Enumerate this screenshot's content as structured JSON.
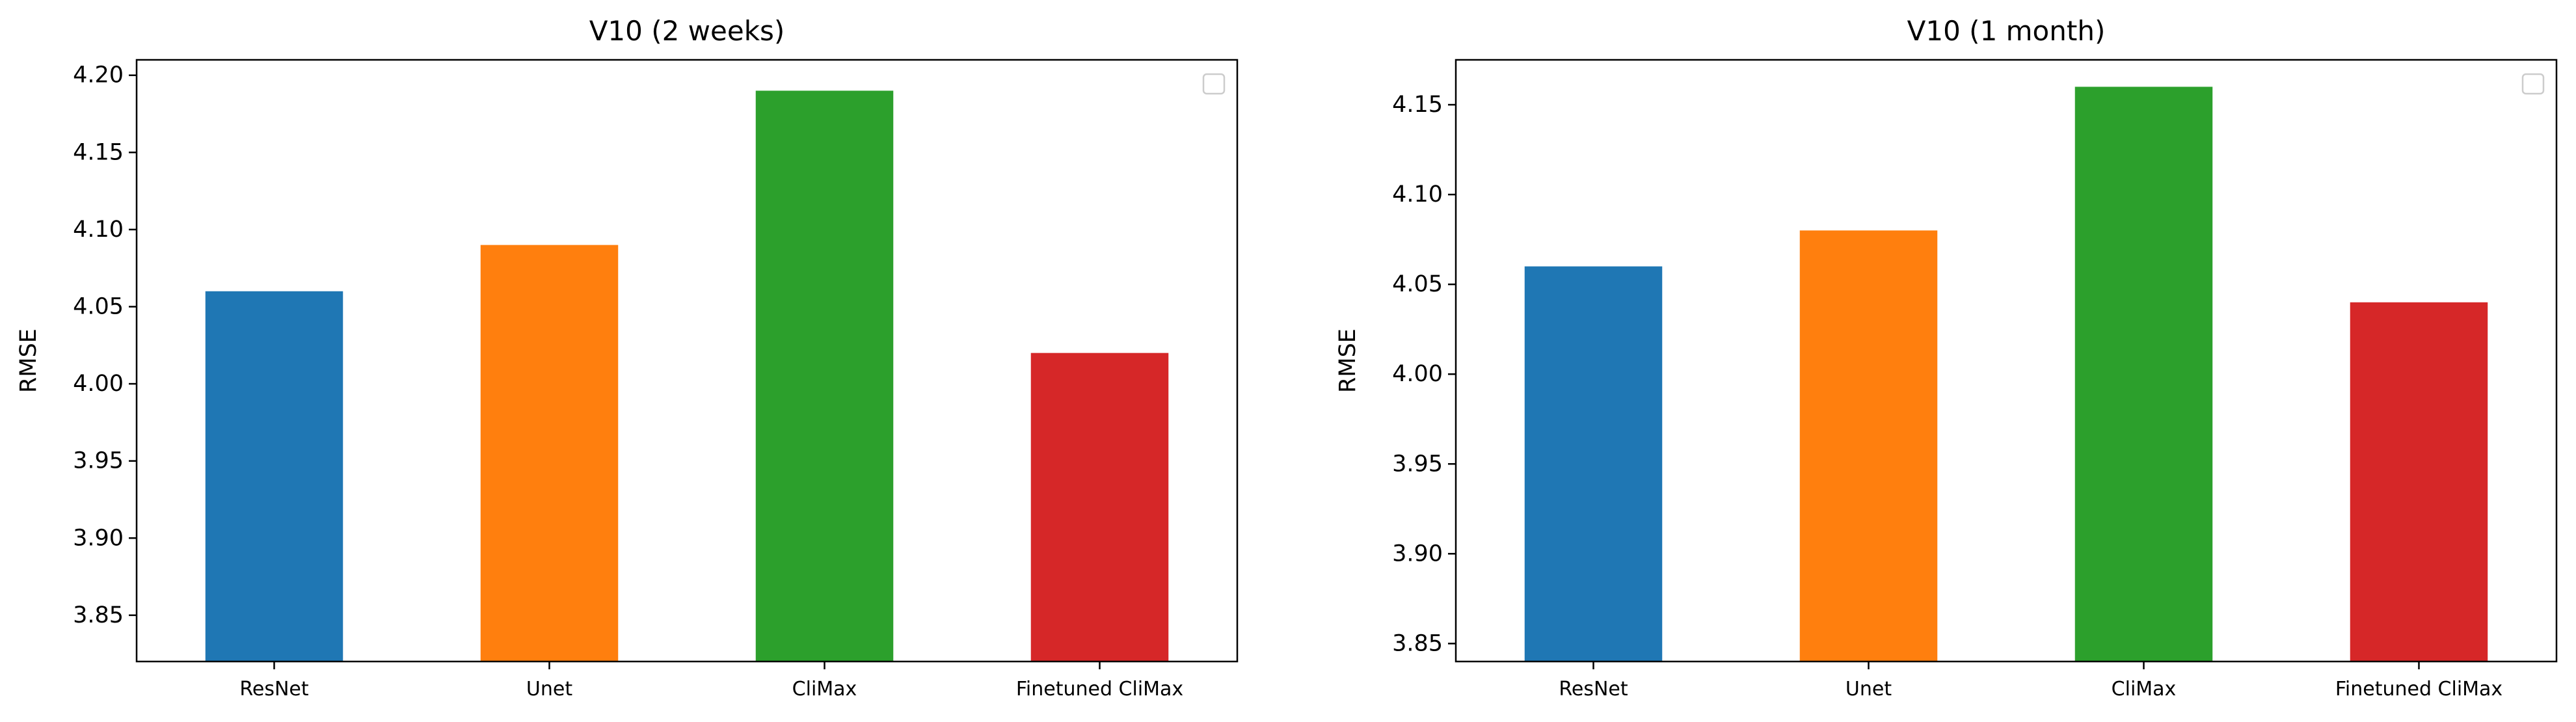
{
  "chart_data": [
    {
      "type": "bar",
      "title": "V10 (2 weeks)",
      "xlabel": "",
      "ylabel": "RMSE",
      "categories": [
        "ResNet",
        "Unet",
        "CliMax",
        "Finetuned CliMax"
      ],
      "values": [
        4.06,
        4.09,
        4.19,
        4.02
      ],
      "colors": [
        "#1f77b4",
        "#ff7f0e",
        "#2ca02c",
        "#d62728"
      ],
      "ylim": [
        3.82,
        4.21
      ],
      "yticks": [
        3.85,
        3.9,
        3.95,
        4.0,
        4.05,
        4.1,
        4.15,
        4.2
      ],
      "ytick_labels": [
        "3.85",
        "3.90",
        "3.95",
        "4.00",
        "4.05",
        "4.10",
        "4.15",
        "4.20"
      ],
      "grid": false,
      "legend": {
        "placement": "top-right",
        "entries": []
      }
    },
    {
      "type": "bar",
      "title": "V10 (1 month)",
      "xlabel": "",
      "ylabel": "RMSE",
      "categories": [
        "ResNet",
        "Unet",
        "CliMax",
        "Finetuned CliMax"
      ],
      "values": [
        4.06,
        4.08,
        4.16,
        4.04
      ],
      "colors": [
        "#1f77b4",
        "#ff7f0e",
        "#2ca02c",
        "#d62728"
      ],
      "ylim": [
        3.84,
        4.175
      ],
      "yticks": [
        3.85,
        3.9,
        3.95,
        4.0,
        4.05,
        4.1,
        4.15
      ],
      "ytick_labels": [
        "3.85",
        "3.90",
        "3.95",
        "4.00",
        "4.05",
        "4.10",
        "4.15"
      ],
      "grid": false,
      "legend": {
        "placement": "top-right",
        "entries": []
      }
    }
  ]
}
